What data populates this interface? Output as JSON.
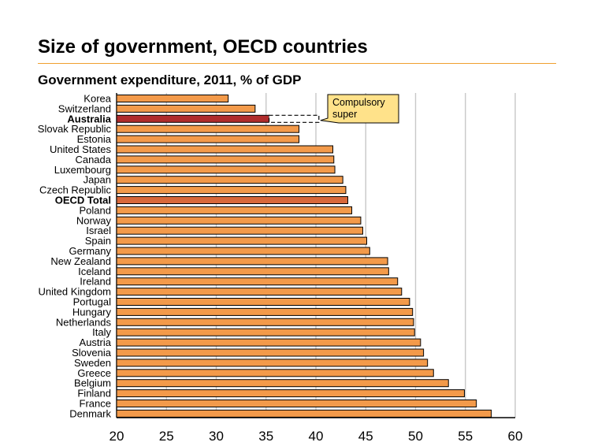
{
  "chart_data": {
    "type": "bar",
    "orientation": "horizontal",
    "title": "Size of government, OECD countries",
    "subtitle": "Government expenditure, 2011, % of GDP",
    "xlabel": "",
    "ylabel": "",
    "xlim": [
      20,
      60
    ],
    "x_ticks": [
      "20",
      "25",
      "30",
      "35",
      "40",
      "45",
      "50",
      "55",
      "60"
    ],
    "grid": "vertical",
    "legend": "none",
    "categories": [
      "Korea",
      "Switzerland",
      "Australia",
      "Slovak Republic",
      "Estonia",
      "United States",
      "Canada",
      "Luxembourg",
      "Japan",
      "Czech Republic",
      "OECD Total",
      "Poland",
      "Norway",
      "Israel",
      "Spain",
      "Germany",
      "New Zealand",
      "Iceland",
      "Ireland",
      "United Kingdom",
      "Portugal",
      "Hungary",
      "Netherlands",
      "Italy",
      "Austria",
      "Slovenia",
      "Sweden",
      "Greece",
      "Belgium",
      "Finland",
      "France",
      "Denmark"
    ],
    "values": [
      31.2,
      33.9,
      35.3,
      38.3,
      38.3,
      41.7,
      41.8,
      41.9,
      42.7,
      43.0,
      43.2,
      43.6,
      44.5,
      44.7,
      45.1,
      45.4,
      47.2,
      47.3,
      48.2,
      48.6,
      49.4,
      49.7,
      49.8,
      49.9,
      50.5,
      50.8,
      51.2,
      51.8,
      53.3,
      54.9,
      56.1,
      57.6
    ],
    "highlighted": [
      "Australia",
      "OECD Total"
    ],
    "bold_labels": [
      "Australia",
      "OECD Total"
    ],
    "annotation": {
      "text_lines": [
        "Compulsory",
        "super"
      ],
      "category": "Australia",
      "from": 35.3,
      "to": 40.3
    },
    "colors": {
      "bar": "#f39a4a",
      "bar_highlight": "#b02c2c",
      "bar_oecd": "#d8683a",
      "annotation_fill": "#ffe28a",
      "title_rule": "#f0a030",
      "grid": "#c8c8c8"
    }
  }
}
